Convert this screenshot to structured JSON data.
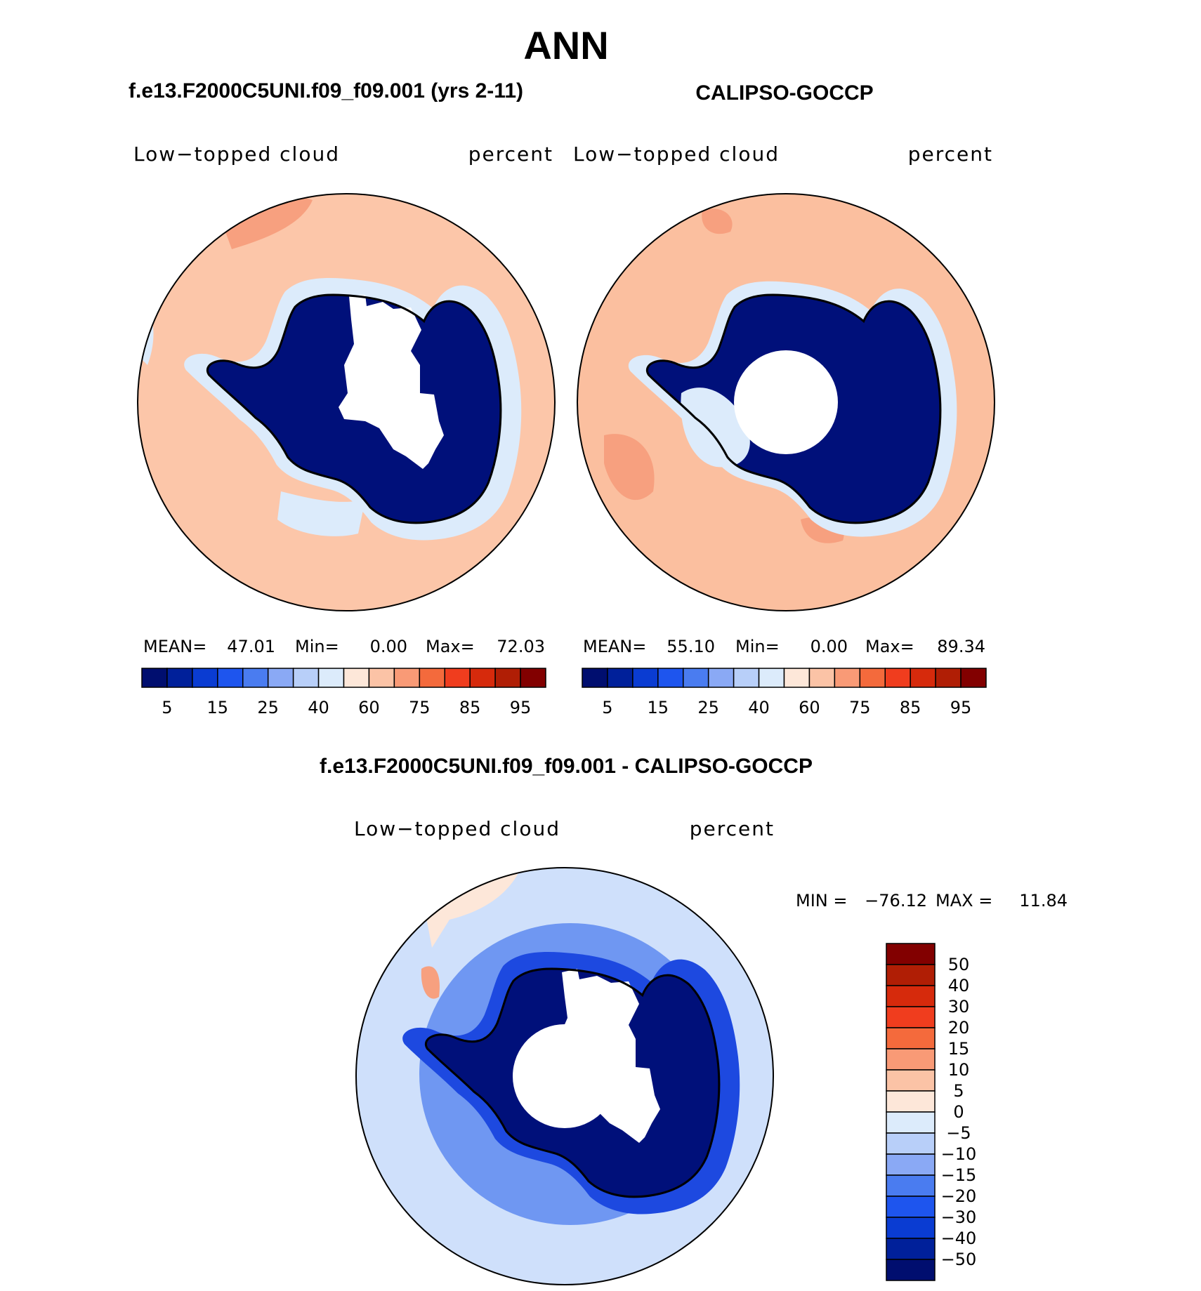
{
  "title": "ANN",
  "panels": {
    "model": {
      "header": "f.e13.F2000C5UNI.f09_f09.001 (yrs 2-11)",
      "variable": "Low−topped cloud",
      "units": "percent",
      "stats": {
        "mean_label": "MEAN=",
        "mean": "47.01",
        "min_label": "Min=",
        "min": "0.00",
        "max_label": "Max=",
        "max": "72.03"
      }
    },
    "obs": {
      "header": "CALIPSO-GOCCP",
      "variable": "Low−topped cloud",
      "units": "percent",
      "stats": {
        "mean_label": "MEAN=",
        "mean": "55.10",
        "min_label": "Min=",
        "min": "0.00",
        "max_label": "Max=",
        "max": "89.34"
      }
    },
    "diff": {
      "header": "f.e13.F2000C5UNI.f09_f09.001 - CALIPSO-GOCCP",
      "variable": "Low−topped cloud",
      "units": "percent",
      "stats": {
        "min_label": "MIN =",
        "min": "−76.12",
        "max_label": "MAX =",
        "max": "11.84"
      }
    }
  },
  "colorbars": {
    "field": {
      "colors": [
        "#000e6f",
        "#00209a",
        "#0a3cd2",
        "#1e55ee",
        "#4a7cf0",
        "#8aa9f5",
        "#b8cff9",
        "#dcebfb",
        "#fde7d9",
        "#fbc3a6",
        "#f99a76",
        "#f46a3c",
        "#f03d1e",
        "#d62a0c",
        "#b01e05",
        "#820000"
      ],
      "tick_labels": [
        "5",
        "15",
        "25",
        "40",
        "60",
        "75",
        "85",
        "95"
      ]
    },
    "diff": {
      "colors": [
        "#000e6f",
        "#00209a",
        "#0a3cd2",
        "#1e55ee",
        "#4a7cf0",
        "#8aa9f5",
        "#b8cff9",
        "#dcebfb",
        "#fde7d9",
        "#fbc3a6",
        "#f99a76",
        "#f46a3c",
        "#f03d1e",
        "#d62a0c",
        "#b01e05",
        "#820000"
      ],
      "tick_labels": [
        "50",
        "40",
        "30",
        "20",
        "15",
        "10",
        "5",
        "0",
        "−5",
        "−10",
        "−15",
        "−20",
        "−30",
        "−40",
        "−50"
      ]
    }
  },
  "map_colors": {
    "ocean_model": "#fcc6a9",
    "ocean_obs": "#fbbf9f",
    "ocean_diff": "#cfe0fb",
    "ice_field": "#00107a",
    "ice_mid": "#1d49e0",
    "pale_blue": "#dcebfb",
    "pale_red": "#fde7d9",
    "red_patch": "#f7a07f",
    "diff_blue": "#6f97f2",
    "hole": "#ffffff",
    "coast": "#000000"
  }
}
